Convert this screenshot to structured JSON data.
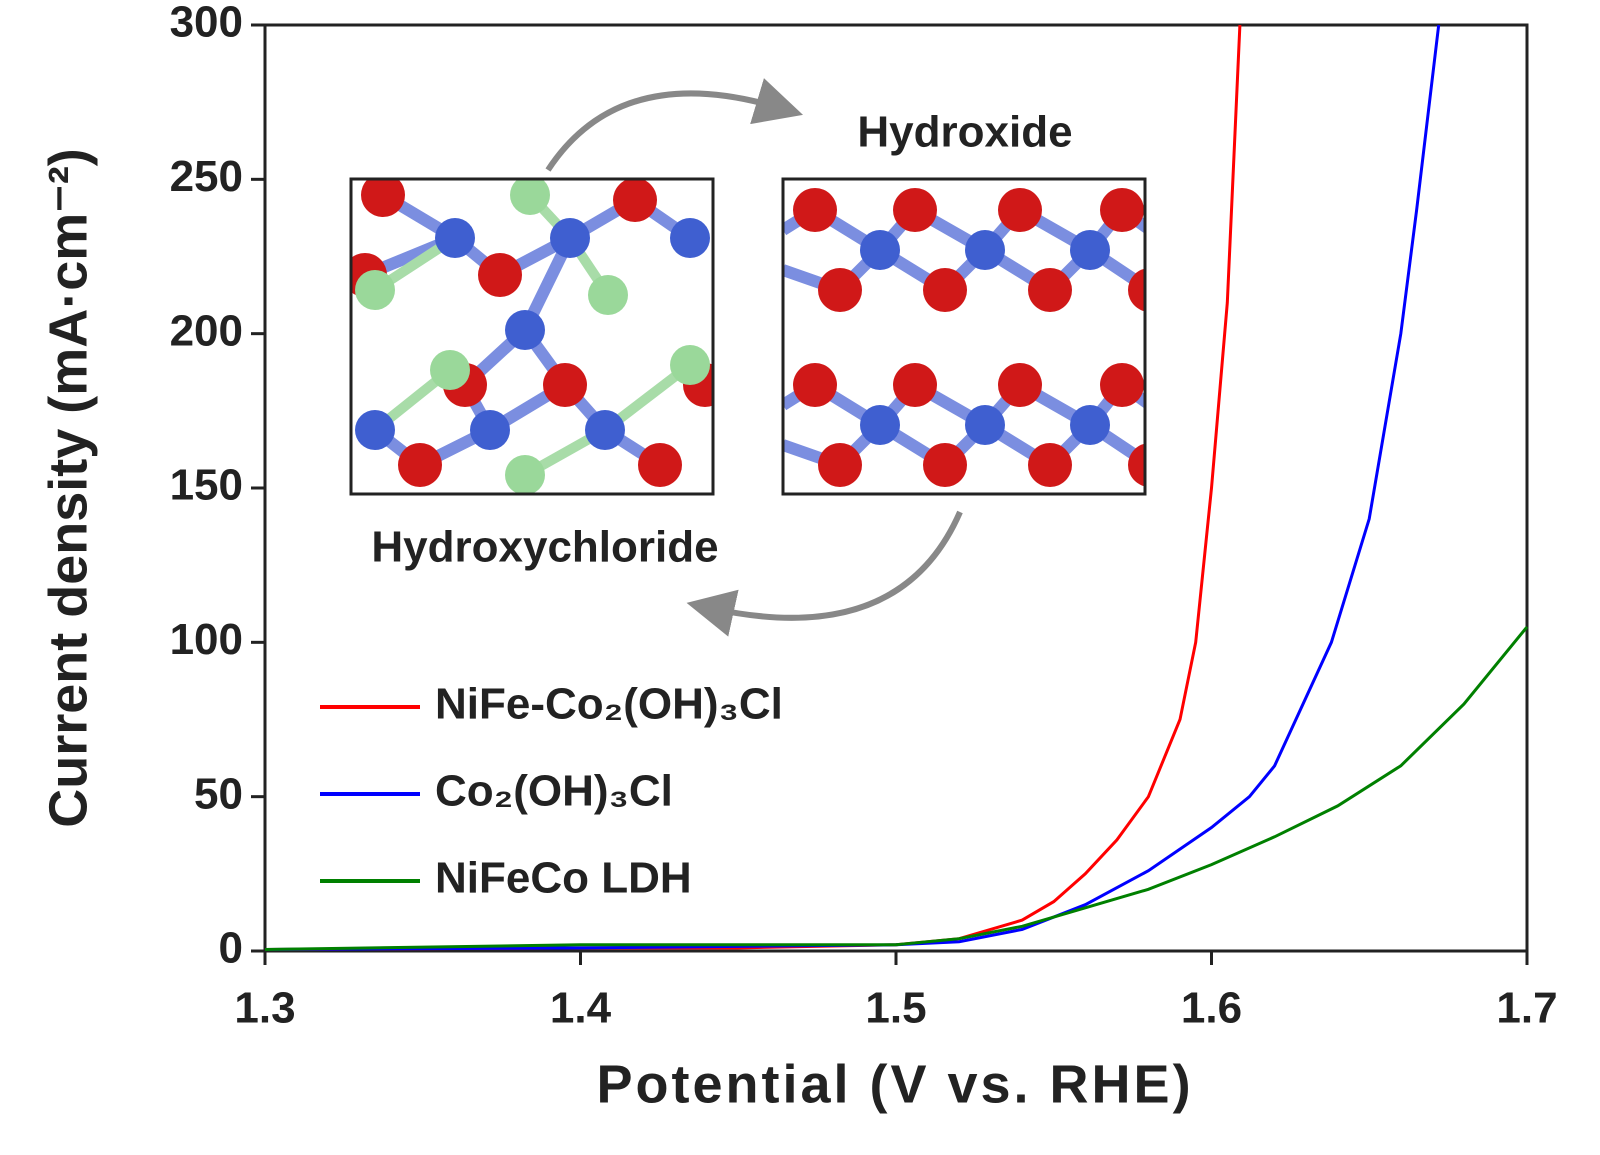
{
  "chart_data": {
    "type": "line",
    "x_label": "Potential (V vs. RHE)",
    "y_label": "Current density (mA·cm⁻²)",
    "annotations": [
      "Hydroxide",
      "Hydroxychloride"
    ],
    "xlim": [
      1.3,
      1.7
    ],
    "xticks": [
      1.3,
      1.4,
      1.5,
      1.6,
      1.7
    ],
    "ylim": [
      0,
      300
    ],
    "yticks": [
      0,
      50,
      100,
      150,
      200,
      250,
      300
    ],
    "legend": "left",
    "series": [
      {
        "name": "NiFe-Co₂(OH)₃Cl",
        "color": "#ff0000",
        "x": [
          1.3,
          1.4,
          1.45,
          1.5,
          1.52,
          1.54,
          1.55,
          1.56,
          1.57,
          1.58,
          1.59,
          1.595,
          1.6,
          1.605,
          1.609
        ],
        "values": [
          0.5,
          1,
          1,
          2,
          4,
          10,
          16,
          25,
          36,
          50,
          75,
          100,
          150,
          210,
          300
        ]
      },
      {
        "name": "Co₂(OH)₃Cl",
        "color": "#0000ff",
        "x": [
          1.3,
          1.4,
          1.5,
          1.52,
          1.54,
          1.56,
          1.58,
          1.6,
          1.612,
          1.62,
          1.638,
          1.65,
          1.66,
          1.665,
          1.672
        ],
        "values": [
          0.5,
          1,
          2,
          3,
          7,
          15,
          26,
          40,
          50,
          60,
          100,
          140,
          200,
          240,
          300
        ]
      },
      {
        "name": "NiFeCo LDH",
        "color": "#008000",
        "x": [
          1.3,
          1.4,
          1.5,
          1.52,
          1.54,
          1.56,
          1.58,
          1.6,
          1.62,
          1.64,
          1.66,
          1.68,
          1.7
        ],
        "values": [
          0.5,
          2,
          2,
          4,
          8,
          14,
          20,
          28,
          37,
          47,
          60,
          80,
          105
        ]
      }
    ]
  }
}
